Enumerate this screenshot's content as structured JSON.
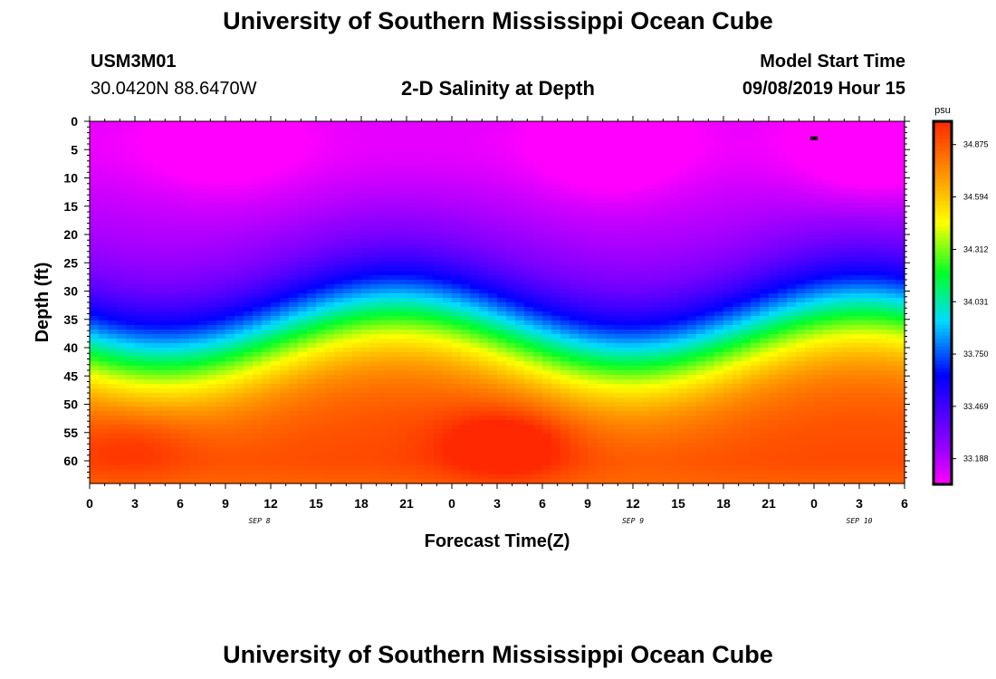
{
  "header": {
    "title": "University of Southern Mississippi Ocean Cube",
    "station_id": "USM3M01",
    "coords": "30.0420N 88.6470W",
    "plot_title": "2-D Salinity at Depth",
    "model_start_label": "Model Start Time",
    "model_start_value": "09/08/2019 Hour 15"
  },
  "footer": {
    "title": "University of Southern Mississippi Ocean Cube"
  },
  "chart_data": {
    "type": "heatmap",
    "title": "2-D Salinity at Depth",
    "xlabel": "Forecast Time(Z)",
    "ylabel": "Depth (ft)",
    "units": "psu",
    "x_tick_labels": [
      "0",
      "3",
      "6",
      "9",
      "12",
      "15",
      "18",
      "21",
      "0",
      "3",
      "6",
      "9",
      "12",
      "15",
      "18",
      "21",
      "0",
      "3",
      "6"
    ],
    "date_labels": [
      {
        "label": "SEP 8",
        "hour_index": 3.75
      },
      {
        "label": "SEP 9",
        "hour_index": 12
      },
      {
        "label": "SEP 10",
        "hour_index": 17
      }
    ],
    "y_ticks": [
      0,
      5,
      10,
      15,
      20,
      25,
      30,
      35,
      40,
      45,
      50,
      55,
      60
    ],
    "ylim": [
      0,
      64
    ],
    "colorbar_ticks": [
      "34.875",
      "34.594",
      "34.312",
      "34.031",
      "33.750",
      "33.469",
      "33.188"
    ],
    "colorbar_range": [
      33.05,
      35.0
    ],
    "field_description": "Low salinity (~33.2) near surface, strong halocline around 20-45 ft oscillating with time, high salinity (~34.9) near bottom",
    "surface_marker": {
      "hour_index": 16,
      "depth_ft": 3
    }
  }
}
